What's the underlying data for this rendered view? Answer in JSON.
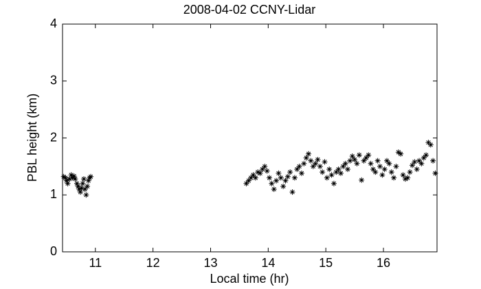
{
  "chart_data": {
    "type": "scatter",
    "title": "2008-04-02 CCNY-Lidar",
    "x_label": "Local time (hr)",
    "y_label": "PBL height (km)",
    "marker": "asterisk",
    "color": "#000000",
    "x": [
      10.45,
      10.48,
      10.5,
      10.52,
      10.55,
      10.58,
      10.6,
      10.63,
      10.65,
      10.68,
      10.7,
      10.72,
      10.74,
      10.76,
      10.78,
      10.8,
      10.82,
      10.84,
      10.86,
      10.88,
      10.9,
      10.92,
      13.62,
      13.66,
      13.7,
      13.74,
      13.78,
      13.82,
      13.86,
      13.9,
      13.94,
      13.98,
      14.02,
      14.06,
      14.1,
      14.14,
      14.18,
      14.22,
      14.26,
      14.3,
      14.34,
      14.38,
      14.42,
      14.46,
      14.5,
      14.54,
      14.58,
      14.62,
      14.66,
      14.7,
      14.74,
      14.78,
      14.82,
      14.86,
      14.9,
      14.94,
      14.98,
      15.02,
      15.06,
      15.1,
      15.14,
      15.18,
      15.22,
      15.26,
      15.3,
      15.34,
      15.38,
      15.42,
      15.46,
      15.5,
      15.54,
      15.58,
      15.62,
      15.66,
      15.7,
      15.74,
      15.78,
      15.82,
      15.86,
      15.9,
      15.94,
      15.98,
      16.02,
      16.06,
      16.1,
      16.14,
      16.18,
      16.22,
      16.26,
      16.3,
      16.34,
      16.38,
      16.42,
      16.46,
      16.5,
      16.54,
      16.58,
      16.62,
      16.66,
      16.7,
      16.74,
      16.78,
      16.82,
      16.86,
      16.9
    ],
    "values": [
      1.32,
      1.3,
      1.25,
      1.2,
      1.28,
      1.35,
      1.3,
      1.33,
      1.28,
      1.2,
      1.15,
      1.1,
      1.05,
      1.12,
      1.2,
      1.28,
      1.1,
      1.0,
      1.15,
      1.25,
      1.3,
      1.32,
      1.2,
      1.25,
      1.3,
      1.35,
      1.3,
      1.4,
      1.38,
      1.45,
      1.5,
      1.42,
      1.3,
      1.2,
      1.1,
      1.25,
      1.38,
      1.3,
      1.15,
      1.25,
      1.32,
      1.4,
      1.05,
      1.3,
      1.45,
      1.5,
      1.38,
      1.55,
      1.65,
      1.72,
      1.6,
      1.5,
      1.55,
      1.62,
      1.5,
      1.4,
      1.58,
      1.3,
      1.45,
      1.35,
      1.2,
      1.4,
      1.45,
      1.38,
      1.5,
      1.55,
      1.45,
      1.6,
      1.68,
      1.62,
      1.55,
      1.7,
      1.26,
      1.6,
      1.65,
      1.7,
      1.55,
      1.45,
      1.4,
      1.6,
      1.5,
      1.35,
      1.45,
      1.6,
      1.55,
      1.4,
      1.3,
      1.5,
      1.75,
      1.72,
      1.35,
      1.28,
      1.3,
      1.4,
      1.52,
      1.58,
      1.45,
      1.6,
      1.55,
      1.65,
      1.7,
      1.92,
      1.88,
      1.6,
      1.38
    ],
    "xlim": [
      10.43,
      16.93
    ],
    "xticks": [
      11,
      12,
      13,
      14,
      15,
      16
    ],
    "ylim": [
      0,
      4
    ],
    "yticks": [
      0,
      1,
      2,
      3,
      4
    ],
    "grid": false
  }
}
